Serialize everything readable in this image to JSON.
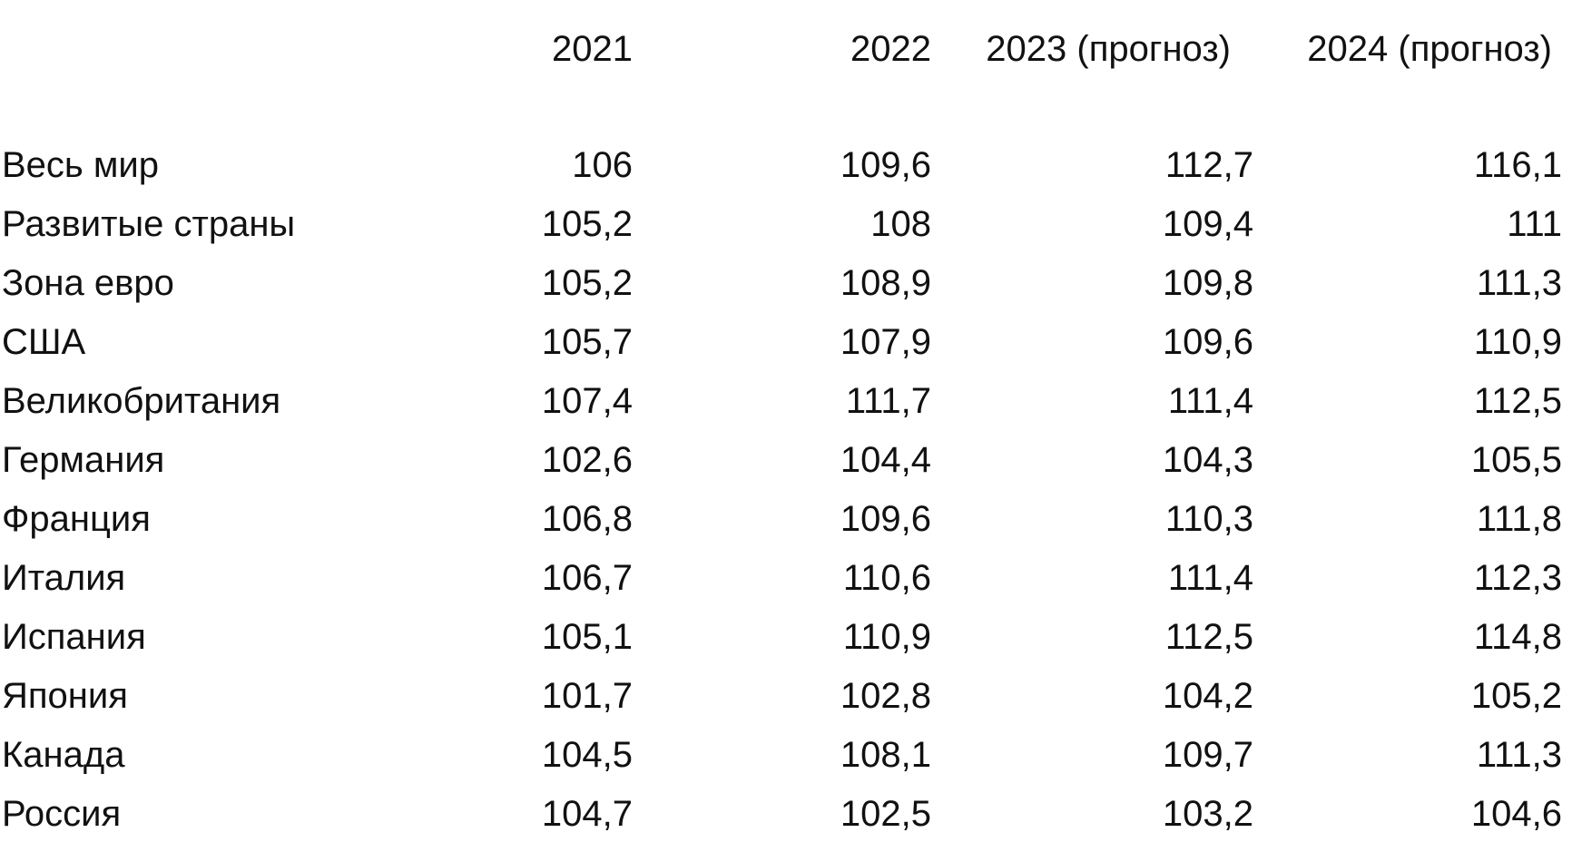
{
  "table": {
    "headers": [
      "",
      "2021",
      "2022",
      "2023 (прогноз)",
      "2024 (прогноз)"
    ],
    "rows": [
      {
        "label": "Весь мир",
        "values": [
          "106",
          "109,6",
          "112,7",
          "116,1"
        ]
      },
      {
        "label": "Развитые страны",
        "values": [
          "105,2",
          "108",
          "109,4",
          "111"
        ]
      },
      {
        "label": "Зона евро",
        "values": [
          "105,2",
          "108,9",
          "109,8",
          "111,3"
        ]
      },
      {
        "label": "США",
        "values": [
          "105,7",
          "107,9",
          "109,6",
          "110,9"
        ]
      },
      {
        "label": "Великобритания",
        "values": [
          "107,4",
          "111,7",
          "111,4",
          "112,5"
        ]
      },
      {
        "label": "Германия",
        "values": [
          "102,6",
          "104,4",
          "104,3",
          "105,5"
        ]
      },
      {
        "label": "Франция",
        "values": [
          "106,8",
          "109,6",
          "110,3",
          "111,8"
        ]
      },
      {
        "label": "Италия",
        "values": [
          "106,7",
          "110,6",
          "111,4",
          "112,3"
        ]
      },
      {
        "label": "Испания",
        "values": [
          "105,1",
          "110,9",
          "112,5",
          "114,8"
        ]
      },
      {
        "label": "Япония",
        "values": [
          "101,7",
          "102,8",
          "104,2",
          "105,2"
        ]
      },
      {
        "label": "Канада",
        "values": [
          "104,5",
          "108,1",
          "109,7",
          "111,3"
        ]
      },
      {
        "label": "Россия",
        "values": [
          "104,7",
          "102,5",
          "103,2",
          "104,6"
        ]
      }
    ]
  }
}
